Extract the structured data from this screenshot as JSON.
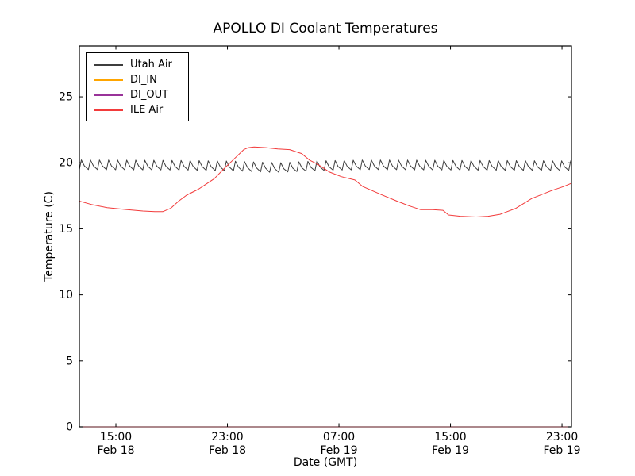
{
  "chart_data": {
    "type": "line",
    "title": "APOLLO DI Coolant Temperatures",
    "xlabel": "Date (GMT)",
    "ylabel": "Temperature (C)",
    "grid": false,
    "legend_position": "upper left",
    "spine_color": "#000000",
    "x_unit": "hours since Feb 18 00:00 GMT",
    "xlim": [
      12.38,
      47.68
    ],
    "ylim": [
      0,
      28.85
    ],
    "yticks": [
      0,
      5,
      10,
      15,
      20,
      25
    ],
    "xticks": [
      {
        "value": 15,
        "time": "15:00",
        "date": "Feb 18"
      },
      {
        "value": 23,
        "time": "23:00",
        "date": "Feb 18"
      },
      {
        "value": 31,
        "time": "07:00",
        "date": "Feb 19"
      },
      {
        "value": 39,
        "time": "15:00",
        "date": "Feb 19"
      },
      {
        "value": 47,
        "time": "23:00",
        "date": "Feb 19"
      }
    ],
    "series": [
      {
        "name": "Utah Air",
        "color": "#3d3d3d",
        "style": "sawtooth",
        "description": "rapid small oscillations around ~19.8 C across full span",
        "sawtooth": {
          "period_hours": 0.65,
          "rise_frac": 0.22,
          "amp_high": 0.4,
          "amp_low": -0.33,
          "mid_drop": -0.05,
          "anchors": [
            [
              12.38,
              19.82
            ],
            [
              20,
              19.78
            ],
            [
              23.5,
              19.72
            ],
            [
              26.5,
              19.6
            ],
            [
              29.5,
              19.75
            ],
            [
              33,
              19.82
            ],
            [
              40,
              19.78
            ],
            [
              47.7,
              19.75
            ]
          ]
        }
      },
      {
        "name": "DI_IN",
        "color": "#ffa500",
        "style": "constant",
        "constant": 0
      },
      {
        "name": "DI_OUT",
        "color": "#993399",
        "style": "constant",
        "constant": 0
      },
      {
        "name": "ILE Air",
        "color": "#f23b3b",
        "style": "points",
        "points": [
          [
            12.38,
            17.1
          ],
          [
            13.24,
            16.85
          ],
          [
            14.37,
            16.6
          ],
          [
            15.8,
            16.45
          ],
          [
            16.94,
            16.35
          ],
          [
            17.79,
            16.3
          ],
          [
            18.36,
            16.3
          ],
          [
            18.93,
            16.55
          ],
          [
            19.5,
            17.1
          ],
          [
            20.07,
            17.55
          ],
          [
            20.92,
            18.0
          ],
          [
            22.06,
            18.8
          ],
          [
            22.8,
            19.6
          ],
          [
            23.48,
            20.3
          ],
          [
            24.17,
            21.0
          ],
          [
            24.51,
            21.15
          ],
          [
            24.91,
            21.2
          ],
          [
            25.76,
            21.15
          ],
          [
            26.61,
            21.05
          ],
          [
            27.47,
            21.0
          ],
          [
            28.32,
            20.7
          ],
          [
            28.89,
            20.2
          ],
          [
            29.46,
            19.9
          ],
          [
            30.32,
            19.3
          ],
          [
            31.17,
            18.95
          ],
          [
            32.14,
            18.7
          ],
          [
            32.71,
            18.2
          ],
          [
            34.02,
            17.6
          ],
          [
            35.16,
            17.1
          ],
          [
            36.01,
            16.75
          ],
          [
            36.86,
            16.45
          ],
          [
            37.72,
            16.45
          ],
          [
            38.46,
            16.4
          ],
          [
            38.86,
            16.05
          ],
          [
            39.71,
            15.95
          ],
          [
            40.85,
            15.9
          ],
          [
            41.7,
            15.95
          ],
          [
            42.56,
            16.1
          ],
          [
            43.69,
            16.55
          ],
          [
            44.83,
            17.3
          ],
          [
            46.26,
            17.9
          ],
          [
            47.11,
            18.2
          ],
          [
            47.68,
            18.45
          ]
        ]
      }
    ]
  }
}
